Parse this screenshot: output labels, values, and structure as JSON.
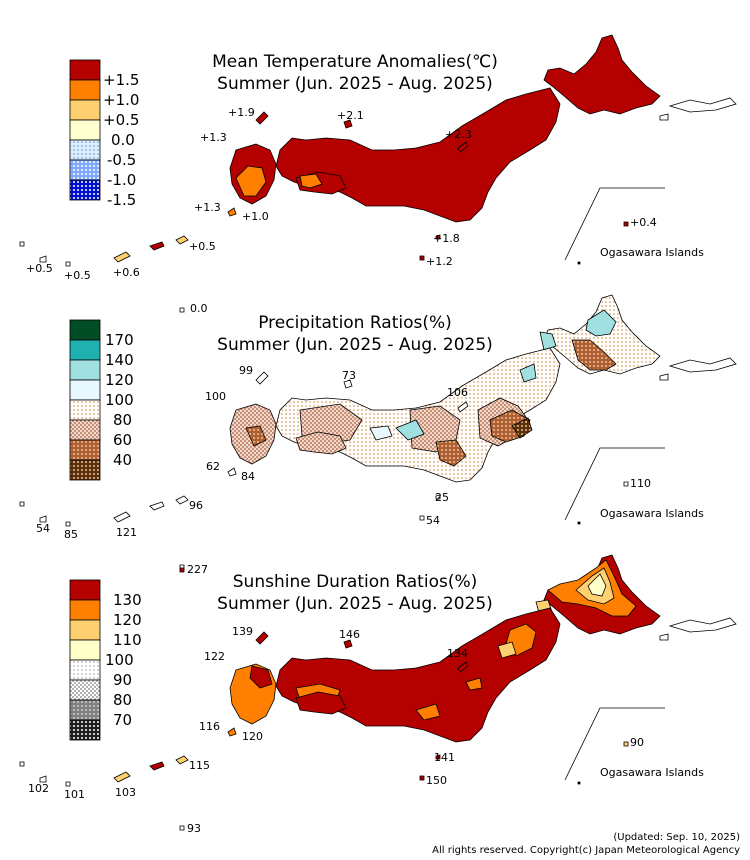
{
  "colors": {
    "temp_plus15": "#b50000",
    "temp_plus10": "#ff8000",
    "temp_plus05": "#ffd070",
    "temp_zero": "#ffffd0",
    "temp_minus05": "#ddeeff",
    "temp_minus10": "#7fa8ff",
    "temp_minus15": "#0010d0",
    "prec_170": "#004d26",
    "prec_140": "#20b0b0",
    "prec_120": "#a0e0e0",
    "prec_100": "#e8f8ff",
    "prec_80": "#ffe8c0",
    "prec_60": "#d8a890",
    "prec_40": "#b06030",
    "prec_lt40": "#5a3010",
    "sun_130": "#b50000",
    "sun_120": "#ff8000",
    "sun_110": "#ffd070",
    "sun_100": "#ffffc8",
    "sun_90": "#f0f0f0",
    "sun_80": "#b8b8b8",
    "sun_70": "#808080",
    "sun_lt70": "#303030"
  },
  "panels": {
    "temp": {
      "title_line1": "Mean Temperature Anomalies(℃)",
      "title_line2": "Summer (Jun. 2025 - Aug. 2025)",
      "legend": [
        "+1.5",
        "+1.0",
        "+0.5",
        "0.0",
        "-0.5",
        "-1.0",
        "-1.5"
      ],
      "values": {
        "v1": "+1.9",
        "v2": "+2.1",
        "v3": "+1.3",
        "v4": "+2.3",
        "v5": "+1.3",
        "v6": "+1.0",
        "v7": "+1.8",
        "v8": "+1.2",
        "v9": "+0.5",
        "v10": "+0.5",
        "v11": "+0.5",
        "v12": "+0.6",
        "v13": "0.0",
        "v14": "+0.4"
      },
      "islands_label": "Ogasawara Islands"
    },
    "prec": {
      "title_line1": "Precipitation Ratios(%)",
      "title_line2": "Summer (Jun. 2025 - Aug. 2025)",
      "legend": [
        "170",
        "140",
        "120",
        "100",
        "80",
        "60",
        "40"
      ],
      "values": {
        "v1": "99",
        "v2": "73",
        "v3": "100",
        "v4": "106",
        "v5": "62",
        "v6": "84",
        "v7": "25",
        "v8": "54",
        "v9": "96",
        "v10": "54",
        "v11": "85",
        "v12": "121",
        "v13": "110"
      },
      "islands_label": "Ogasawara Islands"
    },
    "sun": {
      "title_line1": "Sunshine Duration Ratios(%)",
      "title_line2": "Summer (Jun. 2025 - Aug. 2025)",
      "legend": [
        "130",
        "120",
        "110",
        "100",
        "90",
        "80",
        "70"
      ],
      "values": {
        "v1": "227",
        "v2": "139",
        "v3": "146",
        "v4": "122",
        "v5": "134",
        "v6": "116",
        "v7": "120",
        "v8": "141",
        "v9": "150",
        "v10": "115",
        "v11": "102",
        "v12": "101",
        "v13": "103",
        "v14": "93",
        "v15": "90"
      },
      "islands_label": "Ogasawara Islands"
    }
  },
  "footer": {
    "updated": "(Updated: Sep. 10, 2025)",
    "copyright": "All rights reserved. Copyright(c) Japan Meteorological Agency"
  }
}
